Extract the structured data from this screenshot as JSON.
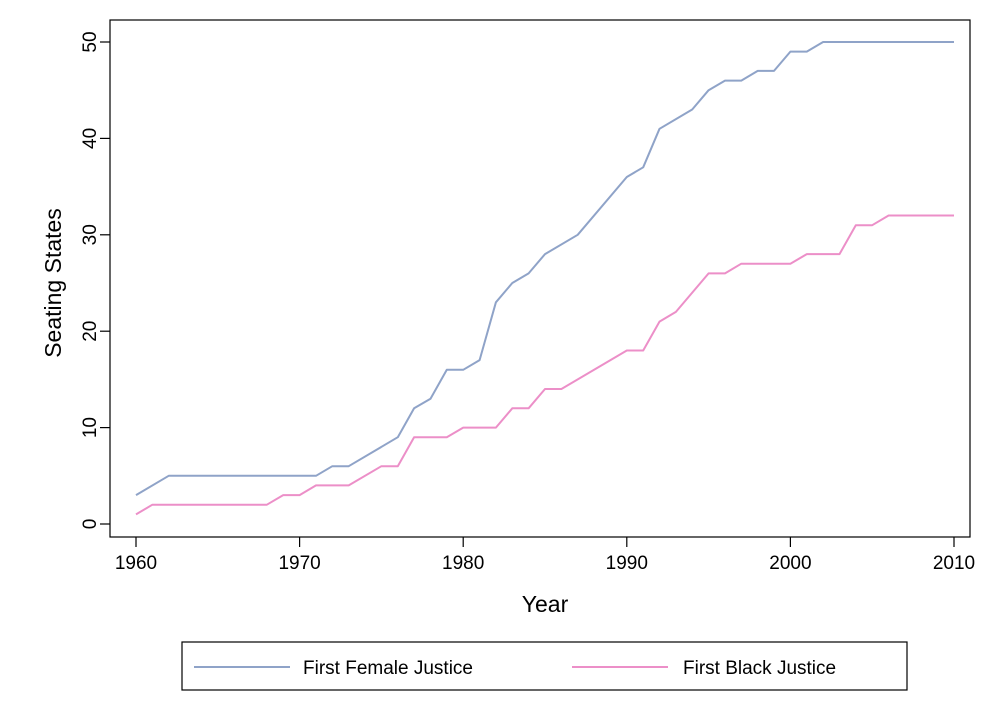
{
  "chart_data": {
    "type": "line",
    "title": "",
    "xlabel": "Year",
    "ylabel": "Seating States",
    "xlim": [
      1960,
      2010
    ],
    "ylim": [
      0,
      50
    ],
    "x_ticks": [
      1960,
      1970,
      1980,
      1990,
      2000,
      2010
    ],
    "y_ticks": [
      0,
      10,
      20,
      30,
      40,
      50
    ],
    "grid": false,
    "legend_position": "bottom",
    "series": [
      {
        "name": "First Female Justice",
        "color": "#8fa3c8",
        "points": [
          [
            1960,
            3
          ],
          [
            1962,
            5
          ],
          [
            1971,
            5
          ],
          [
            1972,
            6
          ],
          [
            1973,
            6
          ],
          [
            1976,
            9
          ],
          [
            1977,
            12
          ],
          [
            1978,
            13
          ],
          [
            1979,
            16
          ],
          [
            1980,
            16
          ],
          [
            1981,
            17
          ],
          [
            1982,
            23
          ],
          [
            1983,
            25
          ],
          [
            1984,
            26
          ],
          [
            1985,
            28
          ],
          [
            1987,
            30
          ],
          [
            1990,
            36
          ],
          [
            1991,
            37
          ],
          [
            1992,
            41
          ],
          [
            1994,
            43
          ],
          [
            1995,
            45
          ],
          [
            1996,
            46
          ],
          [
            1997,
            46
          ],
          [
            1998,
            47
          ],
          [
            1999,
            47
          ],
          [
            2000,
            49
          ],
          [
            2001,
            49
          ],
          [
            2002,
            50
          ],
          [
            2010,
            50
          ]
        ]
      },
      {
        "name": "First Black Justice",
        "color": "#ec8fc8",
        "points": [
          [
            1960,
            1
          ],
          [
            1961,
            2
          ],
          [
            1968,
            2
          ],
          [
            1969,
            3
          ],
          [
            1970,
            3
          ],
          [
            1971,
            4
          ],
          [
            1973,
            4
          ],
          [
            1975,
            6
          ],
          [
            1976,
            6
          ],
          [
            1977,
            9
          ],
          [
            1979,
            9
          ],
          [
            1980,
            10
          ],
          [
            1982,
            10
          ],
          [
            1983,
            12
          ],
          [
            1984,
            12
          ],
          [
            1985,
            14
          ],
          [
            1986,
            14
          ],
          [
            1990,
            18
          ],
          [
            1991,
            18
          ],
          [
            1992,
            21
          ],
          [
            1993,
            22
          ],
          [
            1995,
            26
          ],
          [
            1996,
            26
          ],
          [
            1997,
            27
          ],
          [
            2000,
            27
          ],
          [
            2001,
            28
          ],
          [
            2003,
            28
          ],
          [
            2004,
            31
          ],
          [
            2005,
            31
          ],
          [
            2006,
            32
          ],
          [
            2010,
            32
          ]
        ]
      }
    ]
  }
}
